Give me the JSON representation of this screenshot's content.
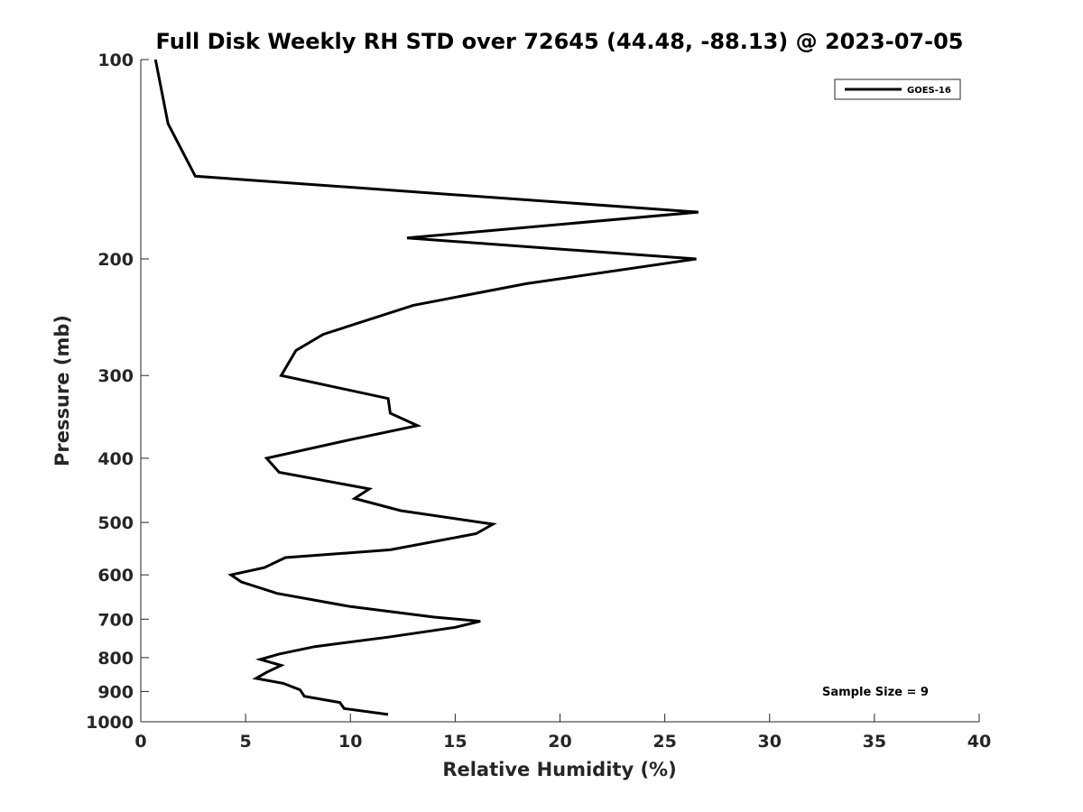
{
  "chart_data": {
    "type": "line",
    "title": "Full Disk Weekly RH STD over 72645 (44.48, -88.13) @ 2023-07-05",
    "xlabel": "Relative Humidity (%)",
    "ylabel": "Pressure (mb)",
    "xlim": [
      0,
      40
    ],
    "ylim": [
      100,
      1000
    ],
    "y_scale": "log",
    "y_reversed": true,
    "x_ticks": [
      0,
      5,
      10,
      15,
      20,
      25,
      30,
      35,
      40
    ],
    "x_tick_labels": [
      "0",
      "5",
      "10",
      "15",
      "20",
      "25",
      "30",
      "35",
      "40"
    ],
    "y_ticks": [
      100,
      200,
      300,
      400,
      500,
      600,
      700,
      800,
      900,
      1000
    ],
    "y_tick_labels": [
      "100",
      "200",
      "300",
      "400",
      "500",
      "600",
      "700",
      "800",
      "900",
      "1000"
    ],
    "grid": false,
    "legend_position": "top-right",
    "series": [
      {
        "name": "GOES-16",
        "color": "#000000",
        "points": [
          [
            0.7,
            100
          ],
          [
            1.3,
            125
          ],
          [
            2.6,
            150
          ],
          [
            26.6,
            170
          ],
          [
            12.7,
            186
          ],
          [
            26.5,
            200
          ],
          [
            18.4,
            218
          ],
          [
            13.0,
            235
          ],
          [
            8.7,
            260
          ],
          [
            7.4,
            275
          ],
          [
            6.7,
            300
          ],
          [
            11.8,
            325
          ],
          [
            11.9,
            342
          ],
          [
            13.2,
            357
          ],
          [
            10.0,
            375
          ],
          [
            6.0,
            400
          ],
          [
            6.6,
            420
          ],
          [
            10.9,
            445
          ],
          [
            10.2,
            460
          ],
          [
            12.4,
            480
          ],
          [
            16.8,
            503
          ],
          [
            16.0,
            520
          ],
          [
            11.9,
            550
          ],
          [
            6.9,
            565
          ],
          [
            5.9,
            585
          ],
          [
            4.3,
            600
          ],
          [
            4.8,
            615
          ],
          [
            6.5,
            640
          ],
          [
            10.0,
            670
          ],
          [
            14.0,
            695
          ],
          [
            16.2,
            705
          ],
          [
            15.0,
            720
          ],
          [
            11.8,
            745
          ],
          [
            8.3,
            770
          ],
          [
            6.6,
            790
          ],
          [
            5.7,
            805
          ],
          [
            6.7,
            822
          ],
          [
            6.0,
            842
          ],
          [
            5.5,
            860
          ],
          [
            6.8,
            875
          ],
          [
            7.6,
            895
          ],
          [
            7.8,
            915
          ],
          [
            9.5,
            935
          ],
          [
            9.7,
            955
          ],
          [
            11.8,
            975
          ]
        ]
      }
    ],
    "annotations": [
      "Sample Size = 9"
    ]
  }
}
